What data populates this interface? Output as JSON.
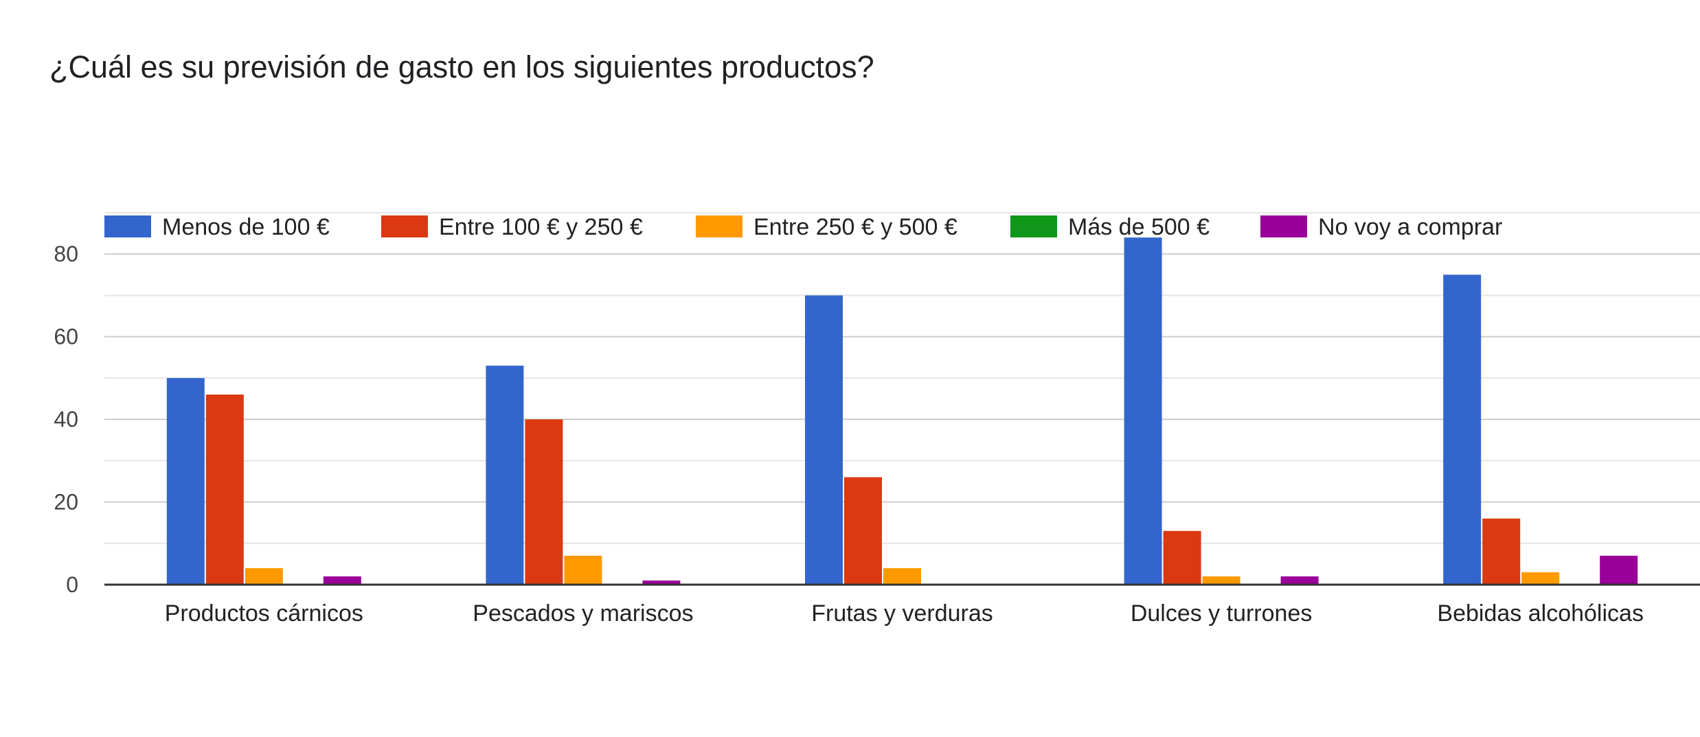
{
  "title": "¿Cuál es su previsión de gasto en los siguientes productos?",
  "chart_data": {
    "type": "bar",
    "title": "¿Cuál es su previsión de gasto en los siguientes productos?",
    "xlabel": "",
    "ylabel": "",
    "categories": [
      "Productos cárnicos",
      "Pescados y mariscos",
      "Frutas y verduras",
      "Dulces y turrones",
      "Bebidas alcohólicas"
    ],
    "series": [
      {
        "name": "Menos de 100 €",
        "color": "#3366cc",
        "values": [
          50,
          53,
          70,
          84,
          75
        ]
      },
      {
        "name": "Entre 100 € y 250 €",
        "color": "#dc3912",
        "values": [
          46,
          40,
          26,
          13,
          16
        ]
      },
      {
        "name": "Entre 250 € y 500 €",
        "color": "#ff9900",
        "values": [
          4,
          7,
          4,
          2,
          3
        ]
      },
      {
        "name": "Más de 500 €",
        "color": "#109618",
        "values": [
          0,
          0,
          0,
          0,
          0
        ]
      },
      {
        "name": "No voy a comprar",
        "color": "#990099",
        "values": [
          2,
          1,
          0,
          2,
          7
        ]
      }
    ],
    "ylim": [
      0,
      90
    ],
    "yticks": [
      0,
      20,
      40,
      60,
      80
    ],
    "grid": true,
    "legend_position": "top"
  }
}
